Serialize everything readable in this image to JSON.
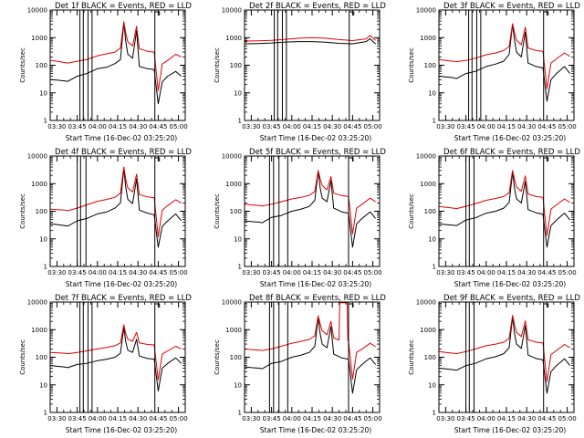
{
  "figure": {
    "ylabel": "Counts/sec",
    "xlabel": "Start Time (16-Dec-02 03:25:20)",
    "xticks": [
      "03:30",
      "03:45",
      "04:00",
      "04:15",
      "04:30",
      "04:45",
      "05:00"
    ],
    "xtick_minutes": [
      5,
      20,
      35,
      50,
      65,
      80,
      95
    ],
    "xlim_minutes": [
      0,
      100
    ],
    "ylim": [
      1,
      10000
    ],
    "yscale": "log",
    "yticks": [
      "1",
      "10",
      "100",
      "1000",
      "10000"
    ],
    "colors": {
      "events": "#000000",
      "lld": "#e00000",
      "axes": "#000000"
    }
  },
  "chart_data": [
    {
      "type": "line",
      "title": "Det 1f BLACK = Events, RED = LLD",
      "vlines_minutes": [
        22,
        24.5,
        28,
        31,
        77.5
      ],
      "series": [
        {
          "name": "Events",
          "color": "#000000",
          "x": [
            0,
            5,
            11,
            13,
            20,
            27,
            35,
            42,
            48,
            52,
            54.5,
            56,
            57.5,
            61,
            64,
            66,
            72,
            77,
            80,
            83,
            87,
            93,
            97
          ],
          "values": [
            30,
            29,
            27,
            26,
            40,
            50,
            75,
            85,
            115,
            160,
            3500,
            700,
            250,
            180,
            1800,
            90,
            75,
            70,
            4,
            25,
            40,
            60,
            40
          ]
        },
        {
          "name": "LLD",
          "color": "#e00000",
          "x": [
            0,
            5,
            11,
            13,
            20,
            27,
            35,
            42,
            48,
            52,
            54.5,
            56,
            57.5,
            61,
            64,
            66,
            72,
            77,
            80,
            83,
            87,
            93,
            97
          ],
          "values": [
            150,
            140,
            125,
            120,
            140,
            160,
            220,
            260,
            300,
            420,
            3800,
            1400,
            700,
            500,
            2600,
            400,
            320,
            300,
            12,
            110,
            150,
            250,
            200
          ]
        }
      ]
    },
    {
      "type": "line",
      "title": "Det 2f BLACK = Events, RED = LLD",
      "vlines_minutes": [
        22,
        24.5,
        28,
        31,
        77.5
      ],
      "series": [
        {
          "name": "Events",
          "color": "#000000",
          "x": [
            0,
            10,
            20,
            30,
            40,
            50,
            60,
            70,
            80,
            90,
            93,
            97
          ],
          "values": [
            600,
            610,
            640,
            690,
            720,
            720,
            680,
            620,
            600,
            720,
            900,
            600
          ]
        },
        {
          "name": "LLD",
          "color": "#e00000",
          "x": [
            0,
            10,
            20,
            30,
            40,
            50,
            60,
            70,
            80,
            90,
            93,
            97
          ],
          "values": [
            750,
            770,
            800,
            870,
            950,
            1000,
            950,
            850,
            780,
            900,
            1200,
            800
          ]
        }
      ]
    },
    {
      "type": "line",
      "title": "Det 3f BLACK = Events, RED = LLD",
      "vlines_minutes": [
        22,
        24.5,
        28,
        31,
        77.5
      ],
      "series": [
        {
          "name": "Events",
          "color": "#000000",
          "x": [
            0,
            5,
            11,
            13,
            20,
            27,
            35,
            42,
            48,
            52,
            54.5,
            56,
            57.5,
            61,
            64,
            66,
            72,
            77,
            80,
            83,
            87,
            93,
            97
          ],
          "values": [
            40,
            38,
            35,
            33,
            50,
            60,
            90,
            110,
            140,
            250,
            3000,
            800,
            300,
            200,
            1600,
            120,
            90,
            80,
            5,
            30,
            50,
            90,
            50
          ]
        },
        {
          "name": "LLD",
          "color": "#e00000",
          "x": [
            0,
            5,
            11,
            13,
            20,
            27,
            35,
            42,
            48,
            52,
            54.5,
            56,
            57.5,
            61,
            64,
            66,
            72,
            77,
            80,
            83,
            87,
            93,
            97
          ],
          "values": [
            160,
            150,
            140,
            135,
            150,
            180,
            240,
            280,
            340,
            480,
            3200,
            1500,
            800,
            550,
            2400,
            420,
            340,
            320,
            14,
            120,
            170,
            280,
            210
          ]
        }
      ]
    },
    {
      "type": "line",
      "title": "Det 4f BLACK = Events, RED = LLD",
      "vlines_minutes": [
        20,
        22.5,
        26.5,
        77.5
      ],
      "series": [
        {
          "name": "Events",
          "color": "#000000",
          "x": [
            0,
            5,
            11,
            13,
            20,
            27,
            35,
            42,
            48,
            52,
            54.5,
            56,
            57.5,
            61,
            64,
            66,
            72,
            77,
            80,
            83,
            87,
            93,
            97
          ],
          "values": [
            35,
            33,
            30,
            29,
            45,
            55,
            80,
            95,
            130,
            200,
            3500,
            700,
            270,
            190,
            1500,
            110,
            85,
            75,
            5,
            28,
            45,
            80,
            45
          ]
        },
        {
          "name": "LLD",
          "color": "#e00000",
          "x": [
            0,
            5,
            11,
            13,
            20,
            27,
            35,
            42,
            48,
            52,
            54.5,
            56,
            57.5,
            61,
            64,
            66,
            72,
            77,
            80,
            83,
            87,
            93,
            97
          ],
          "values": [
            120,
            115,
            110,
            105,
            130,
            170,
            230,
            270,
            320,
            450,
            4000,
            1400,
            700,
            500,
            2200,
            400,
            330,
            310,
            12,
            110,
            160,
            260,
            200
          ]
        }
      ]
    },
    {
      "type": "line",
      "title": "Det 5f BLACK = Events, RED = LLD",
      "vlines_minutes": [
        18.5,
        21.5,
        25.5,
        32,
        77
      ],
      "series": [
        {
          "name": "Events",
          "color": "#000000",
          "x": [
            0,
            5,
            11,
            13,
            20,
            27,
            35,
            42,
            48,
            52,
            54.5,
            56,
            57.5,
            61,
            64,
            66,
            72,
            77,
            80,
            83,
            87,
            93,
            97
          ],
          "values": [
            45,
            42,
            40,
            38,
            60,
            70,
            100,
            120,
            150,
            250,
            2800,
            700,
            300,
            220,
            1300,
            130,
            95,
            85,
            5,
            35,
            55,
            95,
            55
          ]
        },
        {
          "name": "LLD",
          "color": "#e00000",
          "x": [
            0,
            5,
            11,
            13,
            20,
            27,
            35,
            42,
            48,
            52,
            54.5,
            56,
            57.5,
            61,
            64,
            66,
            72,
            77,
            80,
            83,
            87,
            93,
            97
          ],
          "values": [
            180,
            170,
            160,
            155,
            180,
            220,
            280,
            320,
            380,
            520,
            3000,
            1500,
            850,
            600,
            1800,
            450,
            370,
            340,
            15,
            130,
            180,
            300,
            220
          ]
        }
      ]
    },
    {
      "type": "line",
      "title": "Det 6f BLACK = Events, RED = LLD",
      "vlines_minutes": [
        20,
        22.5,
        26,
        77.5
      ],
      "series": [
        {
          "name": "Events",
          "color": "#000000",
          "x": [
            0,
            5,
            11,
            13,
            20,
            27,
            35,
            42,
            48,
            52,
            54.5,
            56,
            57.5,
            61,
            64,
            66,
            72,
            77,
            80,
            83,
            87,
            93,
            97
          ],
          "values": [
            35,
            33,
            31,
            30,
            48,
            58,
            85,
            100,
            130,
            210,
            2600,
            650,
            280,
            200,
            1200,
            115,
            88,
            78,
            5,
            30,
            48,
            85,
            48
          ]
        },
        {
          "name": "LLD",
          "color": "#e00000",
          "x": [
            0,
            5,
            11,
            13,
            20,
            27,
            35,
            42,
            48,
            52,
            54.5,
            56,
            57.5,
            61,
            64,
            66,
            72,
            77,
            80,
            83,
            87,
            93,
            97
          ],
          "values": [
            150,
            140,
            130,
            125,
            150,
            190,
            250,
            290,
            340,
            470,
            3000,
            1400,
            750,
            530,
            1900,
            420,
            340,
            320,
            13,
            120,
            170,
            280,
            210
          ]
        }
      ]
    },
    {
      "type": "line",
      "title": "Det 7f BLACK = Events, RED = LLD",
      "vlines_minutes": [
        22,
        24.5,
        28,
        31,
        77.5
      ],
      "series": [
        {
          "name": "Events",
          "color": "#000000",
          "x": [
            0,
            5,
            11,
            13,
            20,
            27,
            35,
            42,
            48,
            52,
            54.5,
            56,
            57.5,
            61,
            64,
            66,
            72,
            77,
            80,
            83,
            87,
            93,
            97
          ],
          "values": [
            50,
            47,
            44,
            42,
            55,
            60,
            75,
            85,
            100,
            140,
            1200,
            350,
            180,
            150,
            450,
            110,
            90,
            85,
            6,
            40,
            60,
            95,
            60
          ]
        },
        {
          "name": "LLD",
          "color": "#e00000",
          "x": [
            0,
            5,
            11,
            13,
            20,
            27,
            35,
            42,
            48,
            52,
            54.5,
            56,
            57.5,
            61,
            64,
            66,
            72,
            77,
            80,
            83,
            87,
            93,
            97
          ],
          "values": [
            150,
            145,
            140,
            135,
            150,
            170,
            200,
            230,
            260,
            330,
            1500,
            700,
            450,
            380,
            800,
            330,
            290,
            280,
            15,
            130,
            170,
            250,
            200
          ]
        }
      ]
    },
    {
      "type": "line",
      "title": "Det 8f BLACK = Events, RED = LLD",
      "vlines_minutes": [
        18.5,
        21.5,
        25.5,
        32,
        77
      ],
      "series": [
        {
          "name": "Events",
          "color": "#000000",
          "x": [
            0,
            5,
            11,
            13,
            20,
            27,
            35,
            42,
            48,
            52,
            54.5,
            56,
            57.5,
            61,
            64,
            66,
            72,
            77,
            80,
            83,
            87,
            93,
            97
          ],
          "values": [
            45,
            42,
            40,
            38,
            60,
            70,
            100,
            120,
            150,
            250,
            2800,
            700,
            300,
            220,
            1300,
            130,
            95,
            85,
            5,
            35,
            55,
            95,
            55
          ]
        },
        {
          "name": "LLD",
          "color": "#e00000",
          "x": [
            0,
            5,
            11,
            13,
            20,
            27,
            35,
            42,
            48,
            52,
            54.5,
            56,
            57.5,
            61,
            64,
            66,
            70,
            70.5,
            76,
            76.5,
            77,
            80,
            83,
            87,
            93,
            97
          ],
          "values": [
            200,
            190,
            180,
            175,
            200,
            250,
            320,
            380,
            440,
            600,
            3200,
            1600,
            900,
            650,
            2000,
            500,
            420,
            9500,
            9500,
            400,
            380,
            16,
            150,
            200,
            320,
            240
          ]
        }
      ]
    },
    {
      "type": "line",
      "title": "Det 9f BLACK = Events, RED = LLD",
      "vlines_minutes": [
        20,
        22.5,
        26,
        77.5
      ],
      "series": [
        {
          "name": "Events",
          "color": "#000000",
          "x": [
            0,
            5,
            11,
            13,
            20,
            27,
            35,
            42,
            48,
            52,
            54.5,
            56,
            57.5,
            61,
            64,
            66,
            72,
            77,
            80,
            83,
            87,
            93,
            97
          ],
          "values": [
            40,
            38,
            35,
            34,
            50,
            60,
            88,
            105,
            135,
            220,
            2900,
            720,
            300,
            210,
            1400,
            120,
            90,
            80,
            5,
            30,
            50,
            88,
            50
          ]
        },
        {
          "name": "LLD",
          "color": "#e00000",
          "x": [
            0,
            5,
            11,
            13,
            20,
            27,
            35,
            42,
            48,
            52,
            54.5,
            56,
            57.5,
            61,
            64,
            66,
            72,
            77,
            80,
            83,
            87,
            93,
            97
          ],
          "values": [
            160,
            150,
            140,
            135,
            160,
            200,
            260,
            300,
            350,
            480,
            3300,
            1500,
            800,
            560,
            2100,
            430,
            350,
            330,
            13,
            125,
            175,
            290,
            220
          ]
        }
      ]
    }
  ]
}
